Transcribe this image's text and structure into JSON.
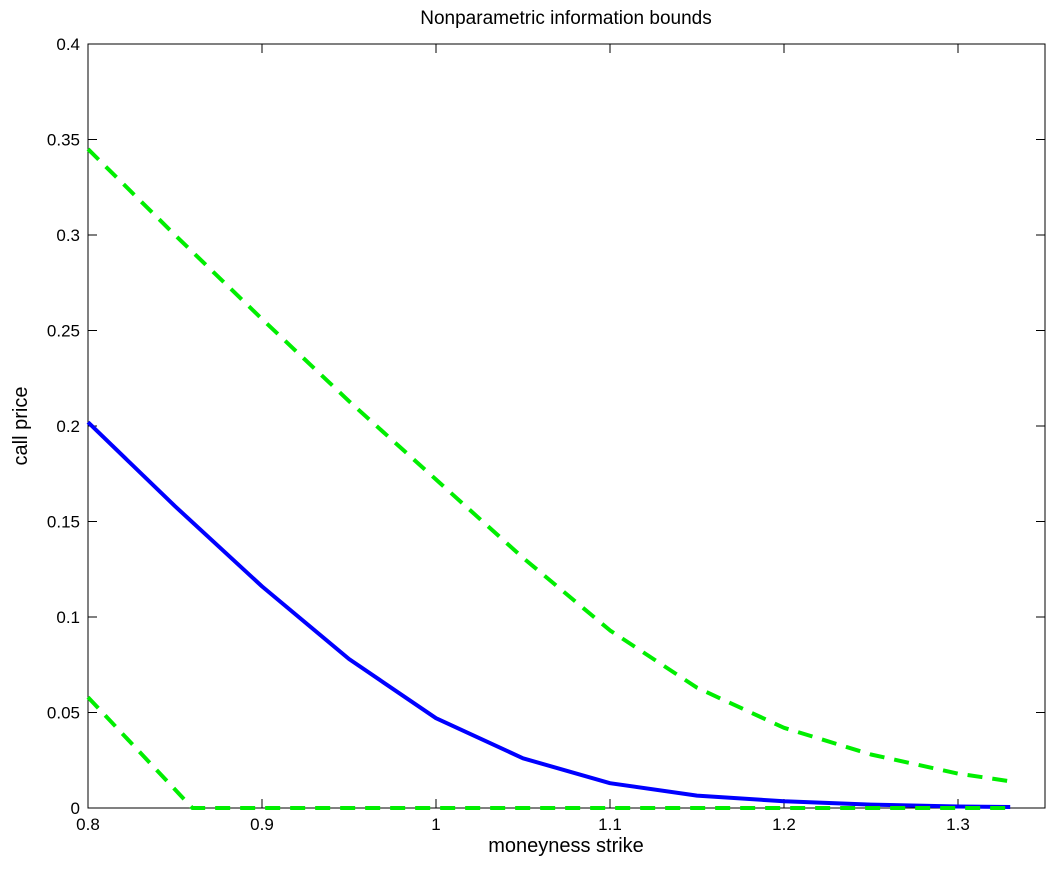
{
  "chart_data": {
    "type": "line",
    "title": "Nonparametric information bounds",
    "xlabel": "moneyness strike",
    "ylabel": "call price",
    "xlim": [
      0.8,
      1.35
    ],
    "ylim": [
      0,
      0.4
    ],
    "grid": false,
    "x_ticks": [
      0.8,
      0.9,
      1.0,
      1.1,
      1.2,
      1.3
    ],
    "x_tick_labels": [
      "0.8",
      "0.9",
      "1",
      "1.1",
      "1.2",
      "1.3"
    ],
    "y_ticks": [
      0,
      0.05,
      0.1,
      0.15,
      0.2,
      0.25,
      0.3,
      0.35,
      0.4
    ],
    "y_tick_labels": [
      "0",
      "0.05",
      "0.1",
      "0.15",
      "0.2",
      "0.25",
      "0.3",
      "0.35",
      "0.4"
    ],
    "series": [
      {
        "style": "solid",
        "color": "#0000ff",
        "x": [
          0.8,
          0.85,
          0.9,
          0.95,
          1.0,
          1.05,
          1.1,
          1.15,
          1.2,
          1.25,
          1.3,
          1.33
        ],
        "y": [
          0.202,
          0.158,
          0.116,
          0.078,
          0.047,
          0.026,
          0.013,
          0.0065,
          0.0035,
          0.0018,
          0.0008,
          0.0005
        ]
      },
      {
        "style": "dashed",
        "color": "#00ee00",
        "x": [
          0.8,
          0.85,
          0.9,
          0.95,
          1.0,
          1.05,
          1.1,
          1.15,
          1.2,
          1.25,
          1.3,
          1.33
        ],
        "y": [
          0.345,
          0.3,
          0.256,
          0.213,
          0.172,
          0.131,
          0.093,
          0.063,
          0.042,
          0.028,
          0.018,
          0.014
        ]
      },
      {
        "style": "dashed",
        "color": "#00ee00",
        "x": [
          0.8,
          0.86,
          0.9,
          1.0,
          1.1,
          1.2,
          1.3,
          1.33
        ],
        "y": [
          0.058,
          0.0,
          0.0,
          0.0,
          0.0,
          0.0,
          0.0,
          0.0
        ]
      }
    ]
  }
}
